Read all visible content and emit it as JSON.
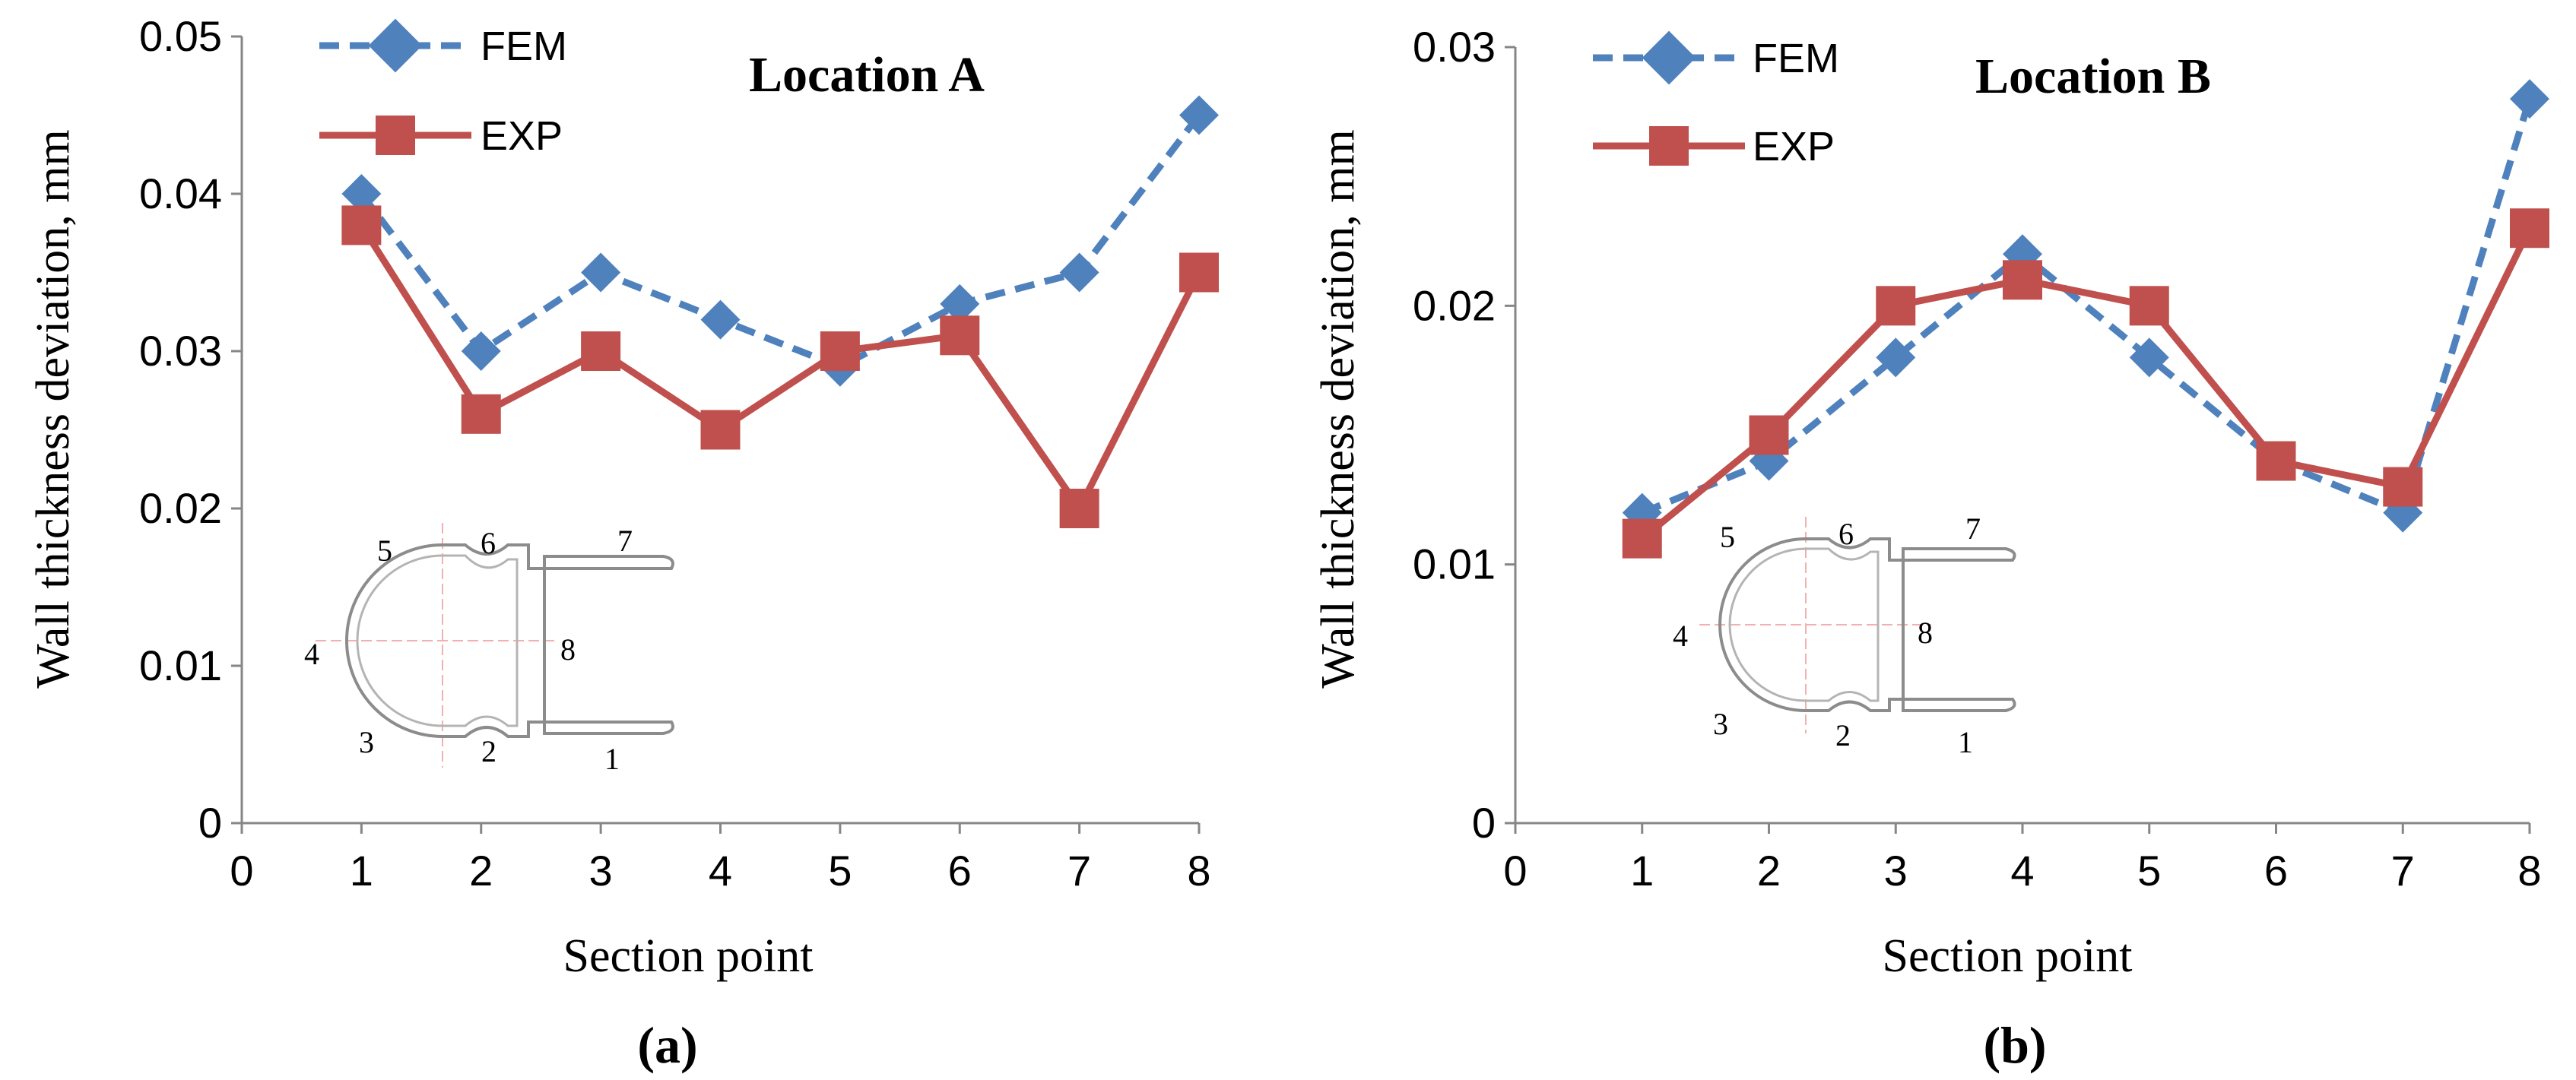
{
  "chart_data": [
    {
      "type": "line",
      "panel": "a",
      "title": "Location A",
      "subfigure_label": "(a)",
      "xlabel": "Section point",
      "ylabel": "Wall thickness deviation,  mm",
      "xlim": [
        0,
        8
      ],
      "ylim": [
        0,
        0.05
      ],
      "x_ticks": [
        "0",
        "1",
        "2",
        "3",
        "4",
        "5",
        "6",
        "7",
        "8"
      ],
      "y_ticks": [
        "0",
        "0.01",
        "0.02",
        "0.03",
        "0.04",
        "0.05"
      ],
      "x": [
        1,
        2,
        3,
        4,
        5,
        6,
        7,
        8
      ],
      "series": [
        {
          "name": "FEM",
          "marker": "diamond",
          "style": "dashed",
          "color": "#4F81BD",
          "values": [
            0.04,
            0.03,
            0.035,
            0.032,
            0.029,
            0.033,
            0.035,
            0.045
          ]
        },
        {
          "name": "EXP",
          "marker": "square",
          "style": "solid",
          "color": "#C0504D",
          "values": [
            0.038,
            0.026,
            0.03,
            0.025,
            0.03,
            0.031,
            0.02,
            0.035
          ]
        }
      ],
      "inset_labels": [
        "1",
        "2",
        "3",
        "4",
        "5",
        "6",
        "7",
        "8"
      ]
    },
    {
      "type": "line",
      "panel": "b",
      "title": "Location B",
      "subfigure_label": "(b)",
      "xlabel": "Section point",
      "ylabel": "Wall thickness deviation,  mm",
      "xlim": [
        0,
        8
      ],
      "ylim": [
        0,
        0.03
      ],
      "x_ticks": [
        "0",
        "1",
        "2",
        "3",
        "4",
        "5",
        "6",
        "7",
        "8"
      ],
      "y_ticks": [
        "0",
        "0.01",
        "0.02",
        "0.03"
      ],
      "x": [
        1,
        2,
        3,
        4,
        5,
        6,
        7,
        8
      ],
      "series": [
        {
          "name": "FEM",
          "marker": "diamond",
          "style": "dashed",
          "color": "#4F81BD",
          "values": [
            0.012,
            0.014,
            0.018,
            0.022,
            0.018,
            0.014,
            0.012,
            0.028
          ]
        },
        {
          "name": "EXP",
          "marker": "square",
          "style": "solid",
          "color": "#C0504D",
          "values": [
            0.011,
            0.015,
            0.02,
            0.021,
            0.02,
            0.014,
            0.013,
            0.023
          ]
        }
      ],
      "inset_labels": [
        "1",
        "2",
        "3",
        "4",
        "5",
        "6",
        "7",
        "8"
      ]
    }
  ]
}
